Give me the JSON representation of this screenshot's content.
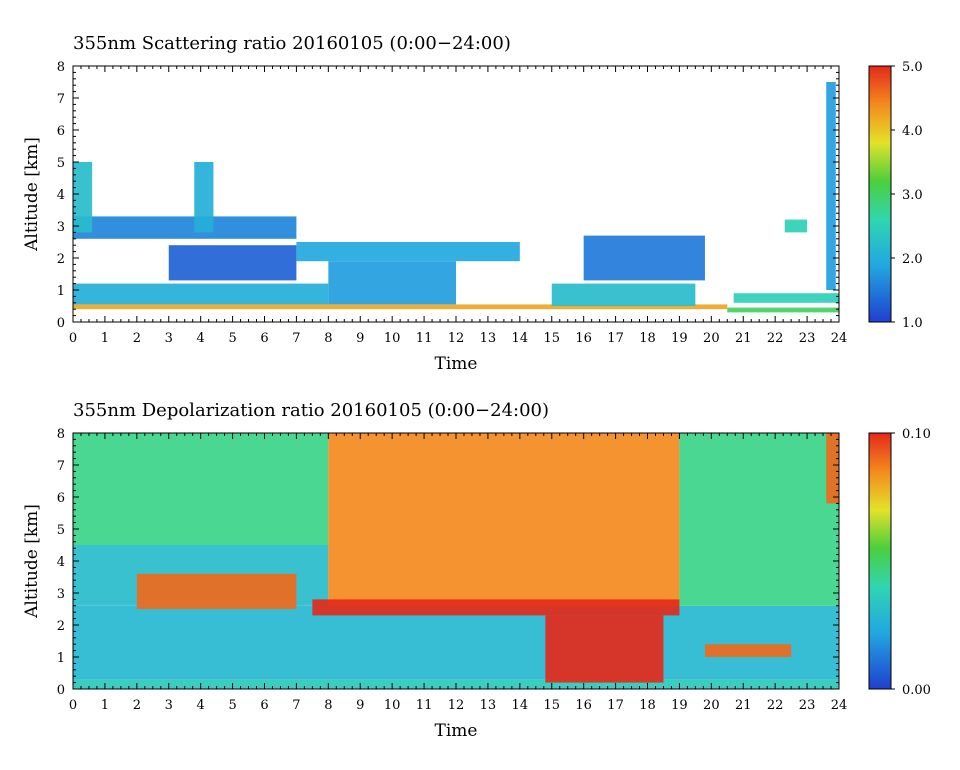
{
  "chart_data": [
    {
      "type": "heatmap",
      "title": "355nm Scattering ratio  20160105 (0:00−24:00)",
      "xlabel": "Time",
      "ylabel": "Altitude [km]",
      "xlim": [
        0,
        24
      ],
      "ylim": [
        0,
        8
      ],
      "x_ticks": [
        "0",
        "1",
        "2",
        "3",
        "4",
        "5",
        "6",
        "7",
        "8",
        "9",
        "10",
        "11",
        "12",
        "13",
        "14",
        "15",
        "16",
        "17",
        "18",
        "19",
        "20",
        "21",
        "22",
        "23",
        "24"
      ],
      "y_ticks": [
        "0",
        "1",
        "2",
        "3",
        "4",
        "5",
        "6",
        "7",
        "8"
      ],
      "colorbar": {
        "min": 1.0,
        "max": 5.0,
        "labels": [
          "5.0",
          "4.0",
          "3.0",
          "2.0",
          "1.0"
        ]
      },
      "layers": [
        {
          "x_start": 0,
          "x_end": 20.5,
          "y_bottom": 0.4,
          "y_top": 0.55,
          "value": 4.2
        },
        {
          "x_start": 20.5,
          "x_end": 24,
          "y_bottom": 0.3,
          "y_top": 0.45,
          "value": 3.0
        },
        {
          "x_start": 0,
          "x_end": 8,
          "y_bottom": 0.55,
          "y_top": 1.2,
          "value": 2.0
        },
        {
          "x_start": 8,
          "x_end": 12,
          "y_bottom": 0.55,
          "y_top": 1.9,
          "value": 1.8
        },
        {
          "x_start": 3,
          "x_end": 7,
          "y_bottom": 1.3,
          "y_top": 2.4,
          "value": 1.3
        },
        {
          "x_start": 0,
          "x_end": 7,
          "y_bottom": 2.6,
          "y_top": 3.3,
          "value": 1.6
        },
        {
          "x_start": 7,
          "x_end": 14,
          "y_bottom": 1.9,
          "y_top": 2.5,
          "value": 1.9
        },
        {
          "x_start": 16,
          "x_end": 19.8,
          "y_bottom": 1.3,
          "y_top": 2.7,
          "value": 1.5
        },
        {
          "x_start": 15,
          "x_end": 19.5,
          "y_bottom": 0.5,
          "y_top": 1.2,
          "value": 2.2
        },
        {
          "x_start": 20.7,
          "x_end": 24,
          "y_bottom": 0.6,
          "y_top": 0.9,
          "value": 2.5
        },
        {
          "x_start": 23.6,
          "x_end": 23.9,
          "y_bottom": 1.0,
          "y_top": 7.5,
          "value": 1.8
        },
        {
          "x_start": 0,
          "x_end": 0.6,
          "y_bottom": 2.8,
          "y_top": 5.0,
          "value": 2.2
        },
        {
          "x_start": 3.8,
          "x_end": 4.4,
          "y_bottom": 2.8,
          "y_top": 5.0,
          "value": 2.0
        },
        {
          "x_start": 22.3,
          "x_end": 23.0,
          "y_bottom": 2.8,
          "y_top": 3.2,
          "value": 2.5
        }
      ]
    },
    {
      "type": "heatmap",
      "title": "355nm Depolarization ratio  20160105 (0:00−24:00)",
      "xlabel": "Time",
      "ylabel": "Altitude [km]",
      "xlim": [
        0,
        24
      ],
      "ylim": [
        0,
        8
      ],
      "x_ticks": [
        "0",
        "1",
        "2",
        "3",
        "4",
        "5",
        "6",
        "7",
        "8",
        "9",
        "10",
        "11",
        "12",
        "13",
        "14",
        "15",
        "16",
        "17",
        "18",
        "19",
        "20",
        "21",
        "22",
        "23",
        "24"
      ],
      "y_ticks": [
        "0",
        "1",
        "2",
        "3",
        "4",
        "5",
        "6",
        "7",
        "8"
      ],
      "colorbar": {
        "min": 0.0,
        "max": 0.1,
        "labels": [
          "0.10",
          "0.00"
        ]
      },
      "layers": [
        {
          "x_start": 0,
          "x_end": 24,
          "y_bottom": 0.0,
          "y_top": 0.3,
          "value": 0.035
        },
        {
          "x_start": 0,
          "x_end": 24,
          "y_bottom": 0.3,
          "y_top": 2.6,
          "value": 0.028
        },
        {
          "x_start": 0,
          "x_end": 8,
          "y_bottom": 2.6,
          "y_top": 4.5,
          "value": 0.03
        },
        {
          "x_start": 0,
          "x_end": 8,
          "y_bottom": 4.5,
          "y_top": 8.0,
          "value": 0.045
        },
        {
          "x_start": 8,
          "x_end": 19,
          "y_bottom": 2.6,
          "y_top": 8.0,
          "value": 0.085
        },
        {
          "x_start": 19,
          "x_end": 24,
          "y_bottom": 2.6,
          "y_top": 8.0,
          "value": 0.045
        },
        {
          "x_start": 2,
          "x_end": 7,
          "y_bottom": 2.5,
          "y_top": 3.6,
          "value": 0.09
        },
        {
          "x_start": 7.5,
          "x_end": 19,
          "y_bottom": 2.3,
          "y_top": 2.8,
          "value": 0.1
        },
        {
          "x_start": 14.8,
          "x_end": 18.5,
          "y_bottom": 0.2,
          "y_top": 2.3,
          "value": 0.1
        },
        {
          "x_start": 19.8,
          "x_end": 22.5,
          "y_bottom": 1.0,
          "y_top": 1.4,
          "value": 0.09
        },
        {
          "x_start": 23.6,
          "x_end": 24,
          "y_bottom": 5.8,
          "y_top": 8.0,
          "value": 0.09
        }
      ]
    }
  ]
}
